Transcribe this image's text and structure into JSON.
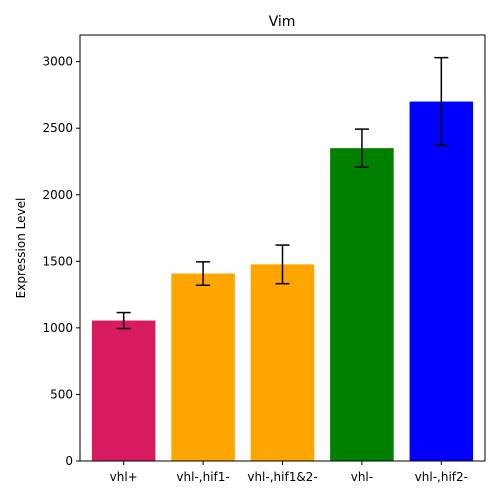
{
  "chart_data": {
    "type": "bar",
    "title": "Vim",
    "xlabel": "",
    "ylabel": "Expression Level",
    "categories": [
      "vhl+",
      "vhl-,hif1-",
      "vhl-,hif1&2-",
      "vhl-",
      "vhl-,hif2-"
    ],
    "values": [
      1055,
      1408,
      1477,
      2350,
      2700
    ],
    "errors": [
      60,
      88,
      145,
      143,
      330
    ],
    "colors": [
      "#d81b60",
      "#ffa500",
      "#ffa500",
      "#008000",
      "#0000ff"
    ],
    "ylim": [
      0,
      3200
    ],
    "yticks": [
      0,
      500,
      1000,
      1500,
      2000,
      2500,
      3000
    ],
    "grid": false,
    "legend": "none"
  }
}
